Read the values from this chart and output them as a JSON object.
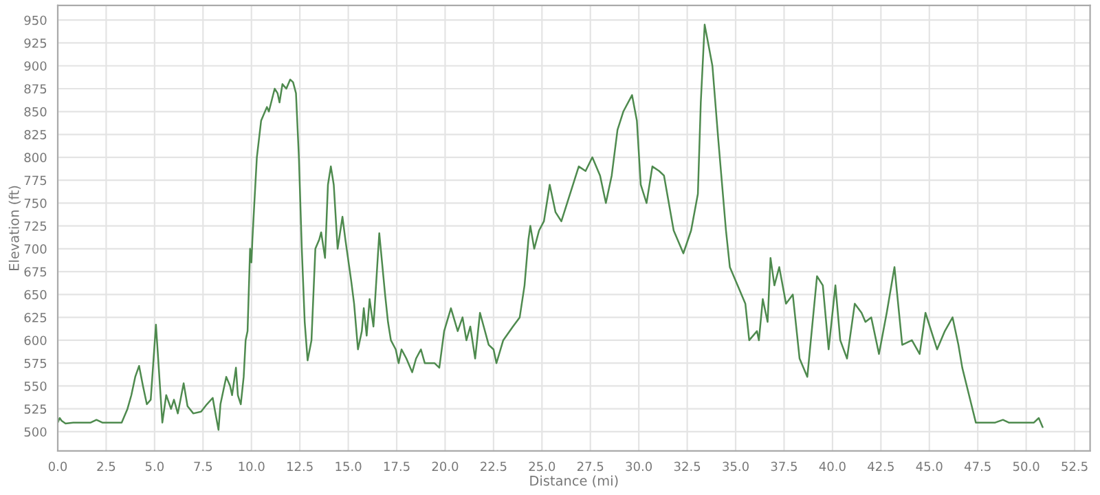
{
  "chart_data": {
    "type": "line",
    "xlabel": "Distance (mi)",
    "ylabel": "Elevation (ft)",
    "x": [
      0.0,
      0.1,
      0.2,
      0.4,
      0.8,
      1.7,
      2.0,
      2.3,
      3.3,
      3.6,
      3.8,
      4.0,
      4.2,
      4.4,
      4.6,
      4.8,
      5.07,
      5.4,
      5.6,
      5.85,
      6.0,
      6.2,
      6.5,
      6.7,
      7.0,
      7.4,
      7.7,
      8.0,
      8.1,
      8.3,
      8.4,
      8.55,
      8.7,
      8.9,
      9.0,
      9.2,
      9.3,
      9.45,
      9.6,
      9.7,
      9.8,
      9.93,
      10.0,
      10.05,
      10.15,
      10.28,
      10.5,
      10.8,
      10.9,
      11.2,
      11.35,
      11.45,
      11.6,
      11.8,
      12.0,
      12.15,
      12.3,
      12.45,
      12.6,
      12.75,
      12.9,
      13.1,
      13.3,
      13.5,
      13.6,
      13.8,
      13.95,
      14.1,
      14.25,
      14.45,
      14.7,
      14.85,
      15.15,
      15.3,
      15.5,
      15.7,
      15.8,
      15.95,
      16.1,
      16.3,
      16.6,
      16.9,
      17.05,
      17.2,
      17.45,
      17.6,
      17.75,
      18.0,
      18.3,
      18.5,
      18.75,
      18.95,
      19.45,
      19.7,
      19.95,
      20.3,
      20.65,
      20.9,
      21.1,
      21.3,
      21.55,
      21.8,
      22.25,
      22.5,
      22.65,
      23.0,
      23.5,
      23.85,
      24.1,
      24.3,
      24.4,
      24.6,
      24.85,
      25.1,
      25.4,
      25.7,
      26.0,
      26.3,
      26.9,
      27.25,
      27.6,
      28.0,
      28.3,
      28.6,
      28.9,
      29.2,
      29.65,
      29.9,
      30.1,
      30.4,
      30.7,
      31.05,
      31.3,
      31.8,
      32.0,
      32.3,
      32.7,
      33.05,
      33.2,
      33.4,
      33.8,
      34.1,
      34.5,
      34.7,
      35.1,
      35.5,
      35.7,
      36.1,
      36.2,
      36.4,
      36.65,
      36.8,
      37.0,
      37.25,
      37.6,
      37.95,
      38.3,
      38.7,
      39.2,
      39.5,
      39.8,
      40.15,
      40.4,
      40.75,
      41.15,
      41.5,
      41.7,
      42.0,
      42.4,
      42.8,
      43.2,
      43.6,
      44.1,
      44.5,
      44.8,
      45.4,
      45.8,
      46.2,
      46.5,
      46.7,
      47.05,
      47.4,
      48.4,
      48.8,
      49.1,
      50.4,
      50.65,
      50.85
    ],
    "series": [
      {
        "color": "#4e8a4e",
        "values": [
          510,
          515,
          512,
          509,
          510,
          510,
          513,
          510,
          510,
          525,
          540,
          560,
          572,
          550,
          530,
          535,
          617,
          510,
          540,
          525,
          535,
          520,
          553,
          528,
          520,
          522,
          530,
          537,
          525,
          502,
          530,
          545,
          560,
          550,
          540,
          570,
          540,
          530,
          560,
          600,
          610,
          700,
          685,
          710,
          750,
          800,
          840,
          855,
          850,
          875,
          870,
          860,
          880,
          875,
          885,
          882,
          870,
          800,
          700,
          620,
          578,
          600,
          700,
          710,
          718,
          690,
          770,
          790,
          770,
          700,
          735,
          710,
          665,
          640,
          590,
          610,
          635,
          605,
          645,
          615,
          717,
          650,
          620,
          600,
          590,
          575,
          590,
          580,
          565,
          580,
          590,
          575,
          575,
          570,
          610,
          635,
          610,
          625,
          600,
          615,
          580,
          630,
          595,
          590,
          575,
          600,
          615,
          625,
          660,
          710,
          725,
          700,
          720,
          730,
          770,
          740,
          730,
          750,
          790,
          785,
          800,
          780,
          750,
          780,
          830,
          850,
          868,
          840,
          770,
          750,
          790,
          785,
          780,
          720,
          710,
          695,
          720,
          760,
          860,
          945,
          900,
          820,
          720,
          680,
          660,
          640,
          600,
          610,
          600,
          645,
          620,
          690,
          660,
          680,
          640,
          650,
          580,
          560,
          670,
          660,
          590,
          660,
          600,
          580,
          640,
          630,
          620,
          625,
          585,
          630,
          680,
          595,
          600,
          585,
          630,
          590,
          610,
          625,
          595,
          570,
          540,
          510,
          510,
          513,
          510,
          510,
          515,
          505
        ]
      }
    ],
    "xlim": [
      0,
      53.3
    ],
    "ylim": [
      479,
      966
    ],
    "xticks": [
      {
        "value": 0,
        "label": "0.0"
      },
      {
        "value": 2.5,
        "label": "2.5"
      },
      {
        "value": 5,
        "label": "5.0"
      },
      {
        "value": 7.5,
        "label": "7.5"
      },
      {
        "value": 10,
        "label": "10.0"
      },
      {
        "value": 12.5,
        "label": "12.5"
      },
      {
        "value": 15,
        "label": "15.0"
      },
      {
        "value": 17.5,
        "label": "17.5"
      },
      {
        "value": 20,
        "label": "20.0"
      },
      {
        "value": 22.5,
        "label": "22.5"
      },
      {
        "value": 25,
        "label": "25.0"
      },
      {
        "value": 27.5,
        "label": "27.5"
      },
      {
        "value": 30,
        "label": "30.0"
      },
      {
        "value": 32.5,
        "label": "32.5"
      },
      {
        "value": 35,
        "label": "35.0"
      },
      {
        "value": 37.5,
        "label": "37.5"
      },
      {
        "value": 40,
        "label": "40.0"
      },
      {
        "value": 42.5,
        "label": "42.5"
      },
      {
        "value": 45,
        "label": "45.0"
      },
      {
        "value": 47.5,
        "label": "47.5"
      },
      {
        "value": 50,
        "label": "50.0"
      },
      {
        "value": 52.5,
        "label": "52.5"
      }
    ],
    "yticks": [
      500,
      525,
      550,
      575,
      600,
      625,
      650,
      675,
      700,
      725,
      750,
      775,
      800,
      825,
      850,
      875,
      900,
      925,
      950
    ],
    "grid": true,
    "line_style": "solid",
    "marker": "none"
  }
}
